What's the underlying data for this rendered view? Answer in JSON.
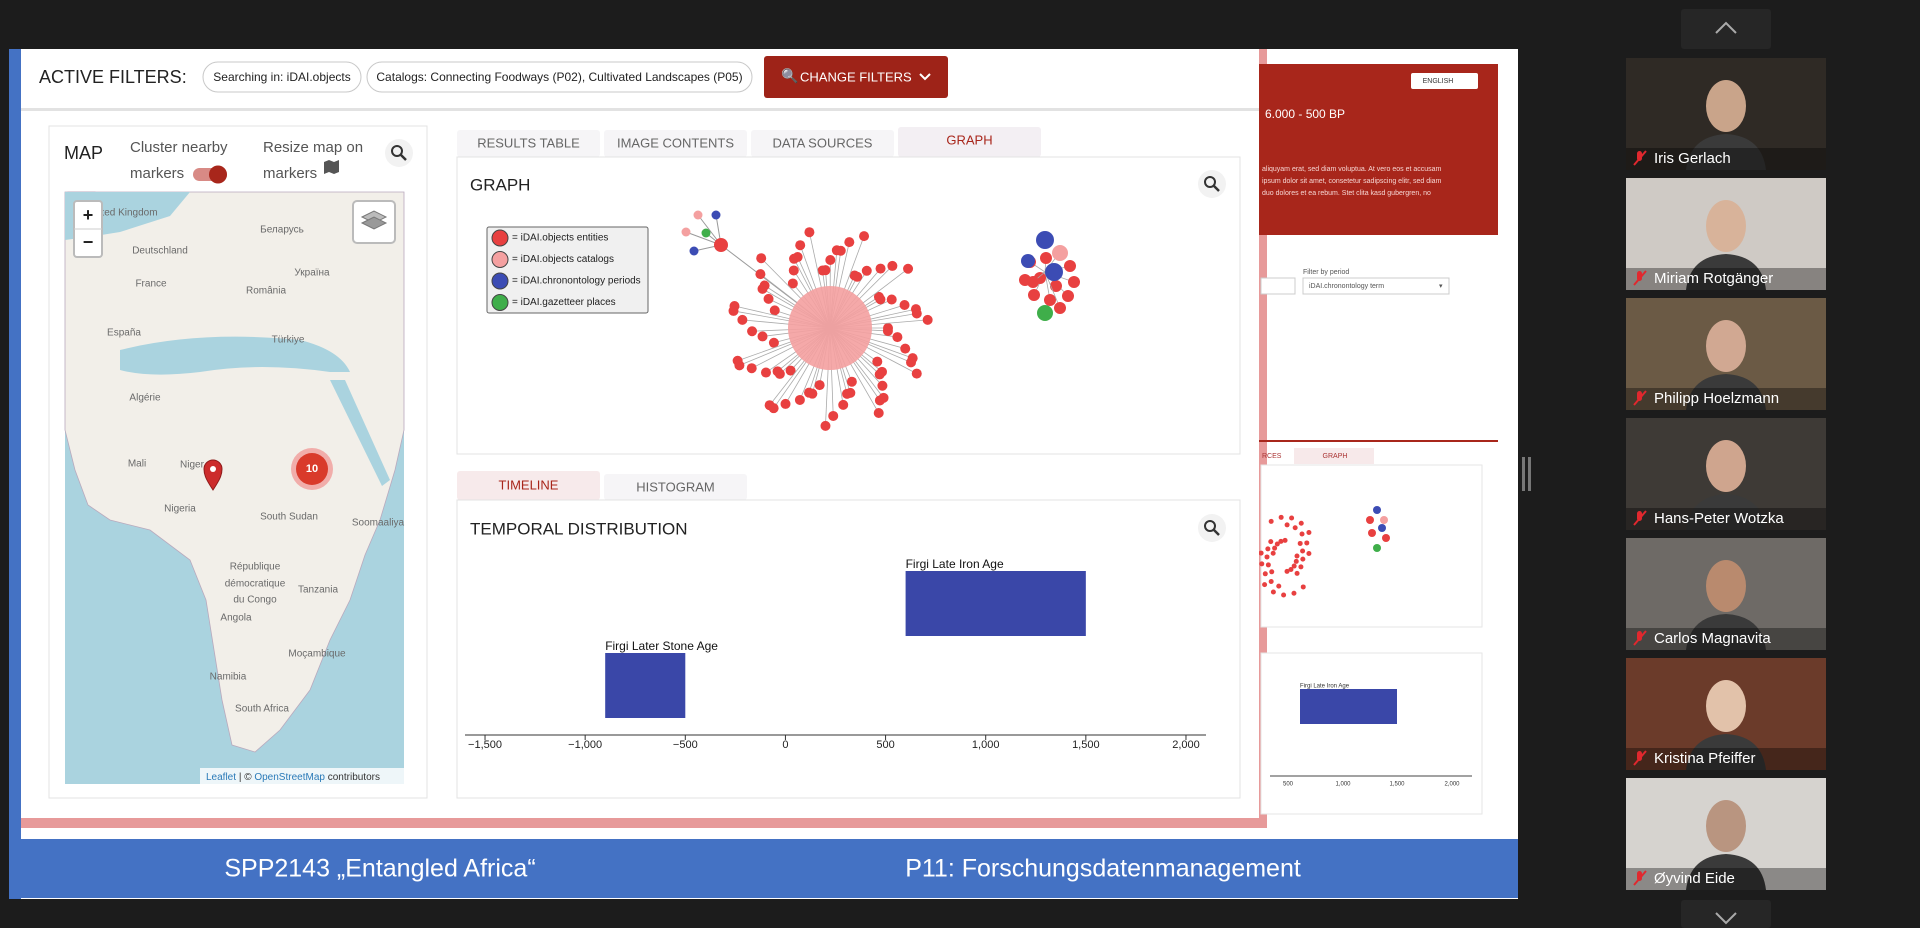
{
  "filters": {
    "label": "ACTIVE FILTERS:",
    "chips": [
      "Searching in: iDAI.objects",
      "Catalogs: Connecting Foodways (P02), Cultivated Landscapes (P05)"
    ],
    "button": "CHANGE FILTERS"
  },
  "map": {
    "title": "MAP",
    "cluster_label": [
      "Cluster nearby",
      "markers"
    ],
    "resize_label": [
      "Resize map on",
      "markers"
    ],
    "zoom_in": "+",
    "zoom_out": "−",
    "cluster_count": "10",
    "places": [
      "United Kingdom",
      "Deutschland",
      "Беларусь",
      "France",
      "România",
      "Україна",
      "España",
      "Türkiye",
      "Algérie",
      "Mali",
      "Niger",
      "Nigeria",
      "South Sudan",
      "Soomaaliya",
      "République",
      "démocratique",
      "du Congo",
      "Tanzania",
      "Angola",
      "Moçambique",
      "Namibia",
      "South Africa"
    ],
    "attribution": {
      "link": "Leaflet",
      "separator": "| ©",
      "osm": "OpenStreetMap",
      "suffix": "contributors"
    }
  },
  "tabs": [
    "RESULTS TABLE",
    "IMAGE CONTENTS",
    "DATA SOURCES",
    "GRAPH"
  ],
  "graph": {
    "title": "GRAPH",
    "legend": [
      {
        "label": "= iDAI.objects entities",
        "color": "#e84040"
      },
      {
        "label": "= iDAI.objects catalogs",
        "color": "#f4a0a0"
      },
      {
        "label": "= iDAI.chronontology periods",
        "color": "#3c4cb4"
      },
      {
        "label": "= iDAI.gazetteer places",
        "color": "#3fae4a"
      }
    ]
  },
  "timeline_tabs": [
    "TIMELINE",
    "HISTOGRAM"
  ],
  "chart_data": {
    "type": "range-bar",
    "title": "TEMPORAL DISTRIBUTION",
    "categories": [
      "Firgi Later Stone Age",
      "Firgi Late Iron Age"
    ],
    "start": [
      -900,
      600
    ],
    "end": [
      -500,
      1500
    ],
    "color": "#3a47a8",
    "xlim": [
      -1600,
      2100
    ],
    "xticks": [
      {
        "value": -1500,
        "label": "−1,500"
      },
      {
        "value": -1000,
        "label": "−1,000"
      },
      {
        "value": -500,
        "label": "−500"
      },
      0,
      500,
      {
        "value": 1000,
        "label": "1,000"
      },
      {
        "value": 1500,
        "label": "1,500"
      },
      {
        "value": 2000,
        "label": "2,000"
      }
    ]
  },
  "background_page": {
    "language": "ENGLISH",
    "period": "6.000 - 500 BP",
    "lorem": [
      "aliquyam erat, sed diam voluptua. At vero eos et accusam",
      "ipsum dolor sit amet, consetetur sadipscing elitr, sed diam",
      "duo dolores et ea rebum. Stet clita kasd gubergren, no"
    ],
    "filter_label": "Filter by period",
    "filter_value": "iDAI.chronontology term",
    "tab_partial": "RCES",
    "tab_graph": "GRAPH",
    "bar_label": "Firgi Late Iron Age",
    "axis_labels": [
      "500",
      "1,000",
      "1,500",
      "2,000"
    ]
  },
  "banner": {
    "left": "SPP2143 „Entangled Africa“",
    "right": "P11: Forschungsdatenmanagement"
  },
  "participants": [
    "Iris Gerlach",
    "Miriam Rotgänger",
    "Philipp Hoelzmann",
    "Hans-Peter Wotzka",
    "Carlos Magnavita",
    "Kristina Pfeiffer",
    "Øyvind Eide"
  ]
}
